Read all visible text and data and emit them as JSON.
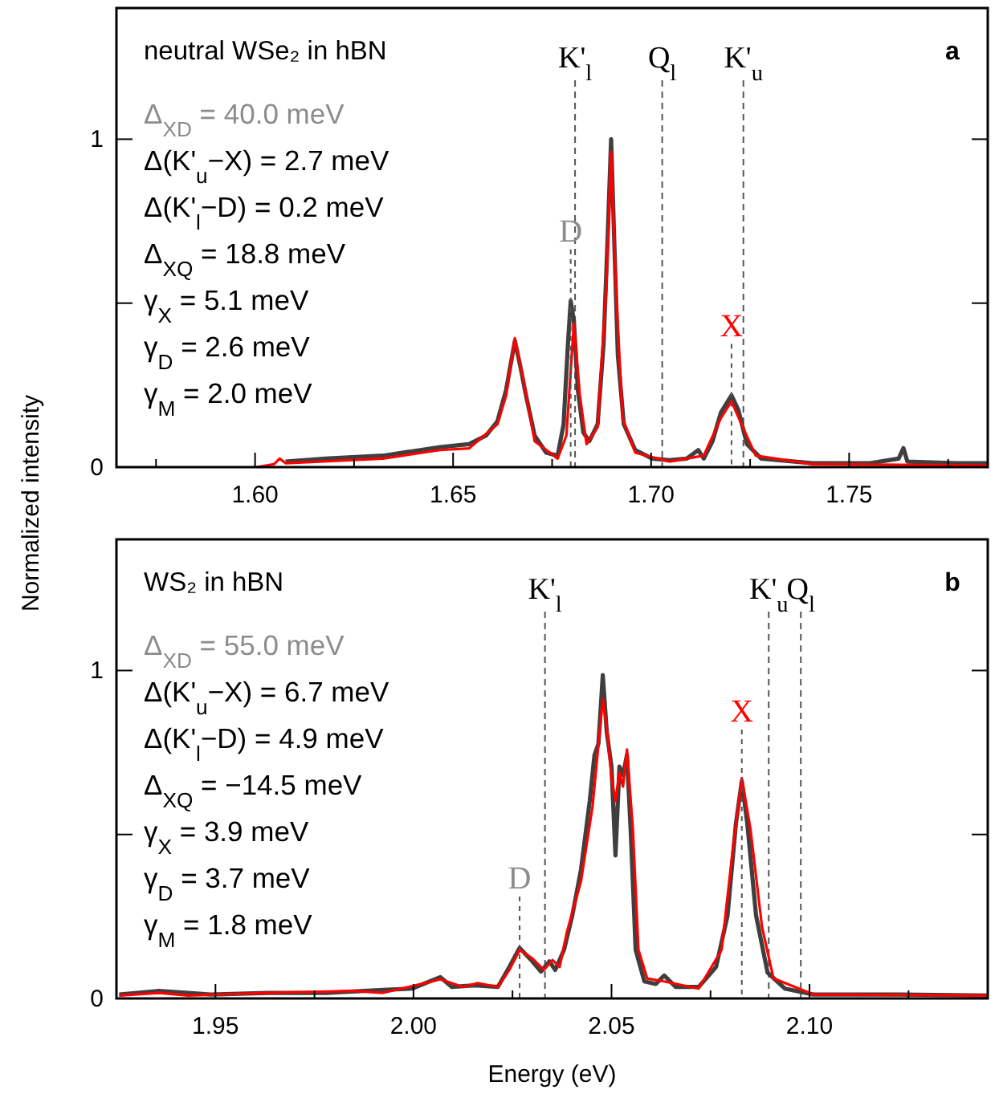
{
  "chart_data": [
    {
      "type": "line",
      "title": "neutral WSe₂ in hBN",
      "ylabel": "Normalized intensity",
      "xlim": [
        1.565,
        1.785
      ],
      "ylim": [
        0,
        1.4
      ],
      "xticks": [
        {
          "value": 1.575,
          "label": null
        },
        {
          "value": 1.6,
          "label": "1.60"
        },
        {
          "value": 1.625,
          "label": null
        },
        1.65,
        {
          "value": 1.675,
          "label": null
        },
        {
          "value": 1.7,
          "label": "1.70"
        },
        {
          "value": 1.725,
          "label": null
        },
        1.75,
        {
          "value": 1.775,
          "label": null
        }
      ],
      "yticks": [
        {
          "value": 0,
          "label": "0"
        },
        {
          "value": 0.5,
          "label": null
        },
        {
          "value": 1,
          "label": "1"
        }
      ],
      "marker": "none",
      "series": [
        {
          "color": "#3f3f3f",
          "x": [
            1.6077,
            1.6178,
            1.6323,
            1.6467,
            1.654,
            1.6583,
            1.6612,
            1.6634,
            1.6656,
            1.667,
            1.6684,
            1.6706,
            1.6735,
            1.6764,
            1.6779,
            1.679,
            1.6797,
            1.6805,
            1.6815,
            1.6829,
            1.6844,
            1.6865,
            1.688,
            1.6891,
            1.6899,
            1.6906,
            1.6916,
            1.6931,
            1.696,
            1.7003,
            1.7046,
            1.709,
            1.7119,
            1.7133,
            1.7155,
            1.7176,
            1.7203,
            1.722,
            1.7242,
            1.7278,
            1.7408,
            1.7553,
            1.7625,
            1.7637,
            1.7647,
            1.777,
            1.785
          ],
          "values": [
            0.017,
            0.026,
            0.035,
            0.061,
            0.07,
            0.096,
            0.14,
            0.236,
            0.385,
            0.306,
            0.219,
            0.096,
            0.044,
            0.035,
            0.131,
            0.376,
            0.507,
            0.446,
            0.236,
            0.105,
            0.079,
            0.131,
            0.376,
            0.726,
            1.0,
            0.726,
            0.341,
            0.131,
            0.052,
            0.026,
            0.021,
            0.026,
            0.052,
            0.026,
            0.079,
            0.166,
            0.219,
            0.175,
            0.07,
            0.026,
            0.012,
            0.012,
            0.026,
            0.058,
            0.017,
            0.012,
            0.012
          ]
        },
        {
          "color": "#ff0000",
          "x": [
            1.6004,
            1.6048,
            1.6062,
            1.6077,
            1.6323,
            1.6467,
            1.654,
            1.6612,
            1.6634,
            1.6656,
            1.6677,
            1.6706,
            1.6764,
            1.6786,
            1.6805,
            1.682,
            1.6837,
            1.6865,
            1.6887,
            1.6899,
            1.6911,
            1.6928,
            1.696,
            1.7046,
            1.7133,
            1.7176,
            1.7203,
            1.7228,
            1.7264,
            1.7408,
            1.785
          ],
          "values": [
            0,
            0.009,
            0.026,
            0.012,
            0.026,
            0.052,
            0.057,
            0.131,
            0.219,
            0.393,
            0.27,
            0.079,
            0.026,
            0.096,
            0.437,
            0.219,
            0.07,
            0.122,
            0.551,
            0.962,
            0.551,
            0.149,
            0.044,
            0.017,
            0.035,
            0.149,
            0.201,
            0.131,
            0.035,
            0.009,
            0.005
          ]
        }
      ],
      "ref_lines": [
        {
          "axis": "x",
          "value": 1.6808,
          "label": "K'$_{l}$",
          "line_style": "dashed",
          "color": "#555555"
        },
        {
          "axis": "x",
          "value": 1.7028,
          "label": "Q$_{l}$",
          "line_style": "dashed",
          "color": "#555555"
        },
        {
          "axis": "x",
          "value": 1.7233,
          "label": "K'$_{u}$",
          "line_style": "dashed",
          "color": "#555555"
        }
      ],
      "annotations": [
        "a",
        "Δ$_{XD}$ = 40.0 meV",
        "Δ(K'$_{u}$−X) = 2.7 meV",
        "Δ(K'$_{l}$−D) = 0.2 meV",
        "Δ$_{XQ}$ = 18.8 meV",
        "γ$_{X}$ = 5.1 meV",
        "γ$_{D}$ = 2.6 meV",
        "γ$_{M}$ = 2.0 meV",
        {
          "text": "D",
          "x": 1.6797,
          "y": 0.507
        },
        {
          "text": "X",
          "x": 1.7203,
          "y": 0.219
        }
      ]
    },
    {
      "type": "line",
      "title": "WS₂ in hBN",
      "xlabel": "Energy (eV)",
      "xlim": [
        1.925,
        2.145
      ],
      "ylim": [
        0,
        1.4
      ],
      "xticks": [
        1.95,
        {
          "value": 1.975,
          "label": null
        },
        {
          "value": 2,
          "label": "2.00"
        },
        {
          "value": 2.025,
          "label": null
        },
        2.05,
        {
          "value": 2.075,
          "label": null
        },
        {
          "value": 2.1,
          "label": "2.10"
        },
        {
          "value": 2.125,
          "label": null
        }
      ],
      "yticks": [
        {
          "value": 0,
          "label": "0"
        },
        {
          "value": 0.5,
          "label": null
        },
        {
          "value": 1,
          "label": "1"
        }
      ],
      "marker": "none",
      "series": [
        {
          "color": "#3f3f3f",
          "x": [
            1.9257,
            1.9358,
            1.9488,
            1.9633,
            1.9778,
            1.9923,
            1.9996,
            2.0068,
            2.0097,
            2.0155,
            2.0213,
            2.0242,
            2.0268,
            2.03,
            2.0322,
            2.0343,
            2.0358,
            2.038,
            2.0401,
            2.0423,
            2.0445,
            2.0457,
            2.0467,
            2.0478,
            2.0488,
            2.05,
            2.051,
            2.052,
            2.0529,
            2.0539,
            2.0549,
            2.0561,
            2.0583,
            2.0612,
            2.0633,
            2.0662,
            2.072,
            2.0764,
            2.0793,
            2.0814,
            2.0829,
            2.0843,
            2.0865,
            2.0894,
            2.0938,
            2.101,
            2.1228,
            2.145
          ],
          "values": [
            0.012,
            0.023,
            0.012,
            0.017,
            0.017,
            0.026,
            0.03,
            0.065,
            0.035,
            0.04,
            0.035,
            0.096,
            0.154,
            0.113,
            0.082,
            0.113,
            0.087,
            0.148,
            0.253,
            0.393,
            0.602,
            0.742,
            0.777,
            0.986,
            0.812,
            0.707,
            0.436,
            0.707,
            0.681,
            0.742,
            0.497,
            0.148,
            0.052,
            0.044,
            0.07,
            0.035,
            0.035,
            0.096,
            0.253,
            0.532,
            0.663,
            0.532,
            0.253,
            0.079,
            0.03,
            0.012,
            0.012,
            0.009
          ]
        },
        {
          "color": "#ff0000",
          "x": [
            1.9257,
            1.9358,
            1.9431,
            1.9633,
            1.9851,
            1.9923,
            2.0068,
            2.0126,
            2.0162,
            2.0213,
            2.0242,
            2.0268,
            2.03,
            2.0329,
            2.0351,
            2.0369,
            2.0387,
            2.0423,
            2.0452,
            2.0478,
            2.0488,
            2.05,
            2.051,
            2.052,
            2.0529,
            2.0539,
            2.0554,
            2.0568,
            2.059,
            2.0633,
            2.072,
            2.0778,
            2.0807,
            2.0829,
            2.0851,
            2.088,
            2.0909,
            2.101,
            2.145
          ],
          "values": [
            0.009,
            0.017,
            0.009,
            0.017,
            0.023,
            0.017,
            0.058,
            0.035,
            0.047,
            0.035,
            0.087,
            0.148,
            0.122,
            0.087,
            0.117,
            0.096,
            0.2,
            0.358,
            0.585,
            0.913,
            0.829,
            0.672,
            0.602,
            0.689,
            0.646,
            0.759,
            0.515,
            0.148,
            0.061,
            0.052,
            0.03,
            0.148,
            0.462,
            0.672,
            0.515,
            0.218,
            0.061,
            0.012,
            0.009
          ]
        }
      ],
      "ref_lines": [
        {
          "axis": "x",
          "value": 2.0332,
          "label": "K'$_{l}$",
          "line_style": "dashed",
          "color": "#555555"
        },
        {
          "axis": "x",
          "value": 2.0897,
          "label": "K'$_{u}$",
          "line_style": "dashed",
          "color": "#555555"
        },
        {
          "axis": "x",
          "value": 2.0978,
          "label": "Q$_{l}$",
          "line_style": "dashed",
          "color": "#555555"
        }
      ],
      "annotations": [
        "b",
        "Δ$_{XD}$ = 55.0 meV",
        "Δ(K'$_{u}$−X) = 6.7 meV",
        "Δ(K'$_{l}$−D) = 4.9 meV",
        "Δ$_{XQ}$ = −14.5 meV",
        "γ$_{X}$ = 3.9 meV",
        "γ$_{D}$ = 3.7 meV",
        "γ$_{M}$ = 1.8 meV",
        {
          "text": "D",
          "x": 2.0268,
          "y": 0.154
        },
        {
          "text": "X",
          "x": 2.0829,
          "y": 0.663
        }
      ]
    }
  ]
}
